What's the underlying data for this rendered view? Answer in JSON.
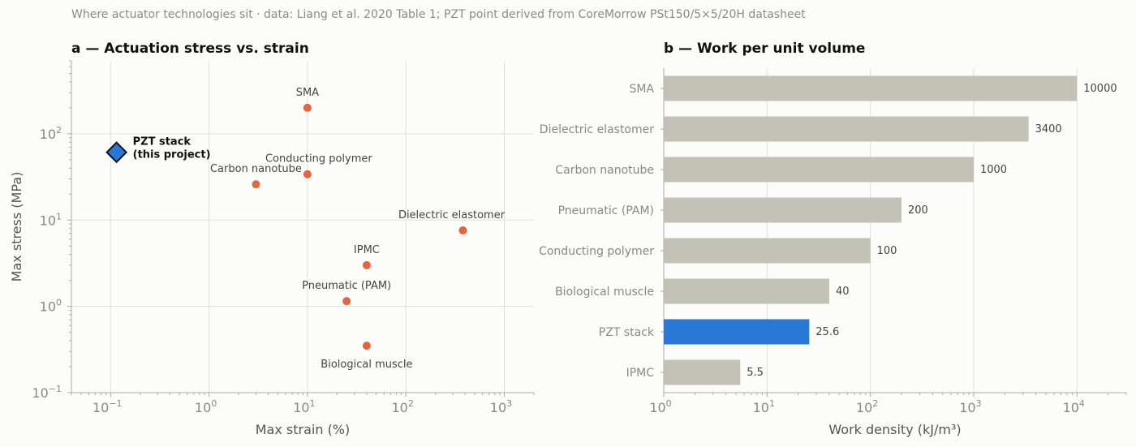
{
  "caption": "Where actuator technologies sit  ·  data: Liang et al. 2020 Table 1; PZT point derived from CoreMorrow PSt150/5×5/20H datasheet",
  "chart_data": [
    {
      "type": "scatter",
      "title": "a — Actuation stress vs. strain",
      "xlabel": "Max strain (%)",
      "ylabel": "Max stress (MPa)",
      "xscale": "log",
      "yscale": "log",
      "xlim": [
        0.04,
        2000
      ],
      "ylim": [
        0.1,
        700
      ],
      "xticks": [
        {
          "base": "10",
          "exp": "−1",
          "value": 0.1
        },
        {
          "base": "10",
          "exp": "0",
          "value": 1
        },
        {
          "base": "10",
          "exp": "1",
          "value": 10
        },
        {
          "base": "10",
          "exp": "2",
          "value": 100
        },
        {
          "base": "10",
          "exp": "3",
          "value": 1000
        }
      ],
      "yticks": [
        {
          "base": "10",
          "exp": "−1",
          "value": 0.1
        },
        {
          "base": "10",
          "exp": "0",
          "value": 1
        },
        {
          "base": "10",
          "exp": "1",
          "value": 10
        },
        {
          "base": "10",
          "exp": "2",
          "value": 100
        }
      ],
      "grid": true,
      "points": [
        {
          "label": "SMA",
          "x": 10,
          "y": 200,
          "label_pos": "above"
        },
        {
          "label": "Conducting polymer",
          "x": 10,
          "y": 34,
          "label_pos": "above-right"
        },
        {
          "label": "Carbon nanotube",
          "x": 3,
          "y": 26,
          "label_pos": "above"
        },
        {
          "label": "Dielectric elastomer",
          "x": 380,
          "y": 7.6,
          "label_pos": "above-left"
        },
        {
          "label": "IPMC",
          "x": 40,
          "y": 3,
          "label_pos": "above"
        },
        {
          "label": "Pneumatic (PAM)",
          "x": 25,
          "y": 1.15,
          "label_pos": "above"
        },
        {
          "label": "Biological muscle",
          "x": 40,
          "y": 0.35,
          "label_pos": "below"
        }
      ],
      "highlight": {
        "label_line1": "PZT stack",
        "label_line2": "(this project)",
        "x": 0.115,
        "y": 61,
        "marker": "diamond"
      },
      "colors": {
        "points": "#e8643a",
        "highlight": "#2a78d6",
        "highlight_edge": "#111111"
      }
    },
    {
      "type": "bar",
      "orientation": "horizontal",
      "title": "b — Work per unit volume",
      "xlabel": "Work density (kJ/m³)",
      "xscale": "log",
      "xlim": [
        1,
        30000
      ],
      "xticks": [
        {
          "base": "10",
          "exp": "0",
          "value": 1
        },
        {
          "base": "10",
          "exp": "1",
          "value": 10
        },
        {
          "base": "10",
          "exp": "2",
          "value": 100
        },
        {
          "base": "10",
          "exp": "3",
          "value": 1000
        },
        {
          "base": "10",
          "exp": "4",
          "value": 10000
        }
      ],
      "grid": true,
      "categories": [
        "SMA",
        "Dielectric elastomer",
        "Carbon nanotube",
        "Pneumatic (PAM)",
        "Conducting polymer",
        "Biological muscle",
        "PZT stack",
        "IPMC"
      ],
      "values": [
        10000,
        3400,
        1000,
        200,
        100,
        40,
        25.6,
        5.5
      ],
      "value_labels": [
        "10000",
        "3400",
        "1000",
        "200",
        "100",
        "40",
        "25.6",
        "5.5"
      ],
      "highlight": "PZT stack",
      "colors": {
        "bar": "#c2c2b6",
        "highlight": "#2a78d6"
      }
    }
  ]
}
